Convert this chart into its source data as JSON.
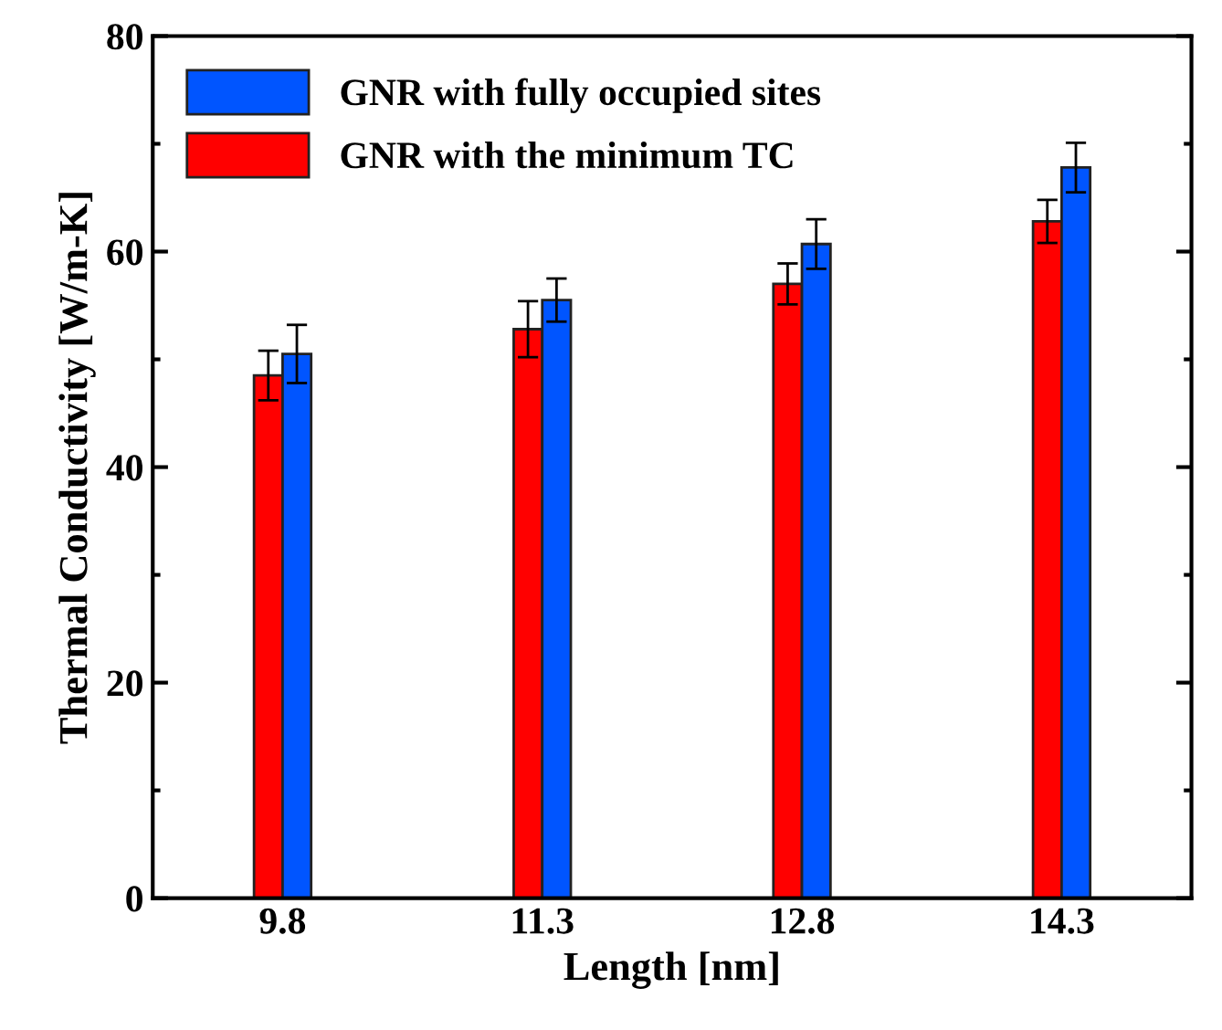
{
  "chart_data": {
    "type": "bar",
    "xlabel": "Length [nm]",
    "ylabel": "Thermal Conductivity [W/m-K]",
    "categories": [
      "9.8",
      "11.3",
      "12.8",
      "14.3"
    ],
    "series": [
      {
        "name": "GNR with the minimum TC",
        "color": "#ff0000",
        "values": [
          48.5,
          52.8,
          57.0,
          62.8
        ],
        "errors": [
          2.3,
          2.6,
          1.9,
          2.0
        ]
      },
      {
        "name": "GNR with fully occupied sites",
        "color": "#0055ff",
        "values": [
          50.5,
          55.5,
          60.7,
          67.8
        ],
        "errors": [
          2.7,
          2.0,
          2.3,
          2.3
        ]
      }
    ],
    "ylim": [
      0,
      80
    ],
    "yticks": [
      0,
      20,
      40,
      60,
      80
    ],
    "legend": "top left",
    "grid": false
  }
}
